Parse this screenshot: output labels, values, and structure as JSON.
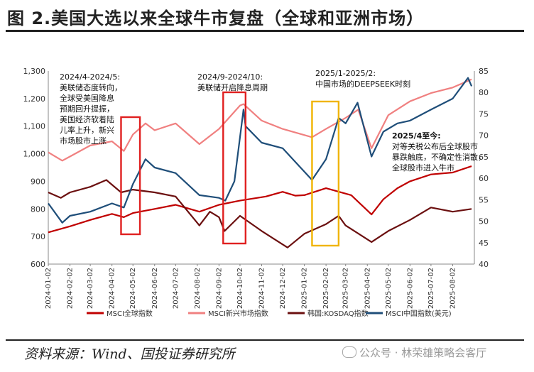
{
  "figure": {
    "title": "图 2.美国大选以来全球牛市复盘（全球和亚洲市场）",
    "source": "资料来源：Wind、国投证券研究所",
    "watermark": "公众号 · 林荣雄策略会客厅"
  },
  "chart_data": {
    "type": "line",
    "title": "",
    "xlabel": "",
    "ylabel": "",
    "x_ticks": [
      "2024-01-02",
      "2024-02-02",
      "2024-03-02",
      "2024-04-02",
      "2024-05-02",
      "2024-06-02",
      "2024-07-02",
      "2024-08-02",
      "2024-09-02",
      "2024-10-02",
      "2024-11-02",
      "2024-12-02",
      "2025-01-02",
      "2025-02-02",
      "2025-03-02",
      "2025-04-02",
      "2025-05-02",
      "2025-06-02",
      "2025-07-02",
      "2025-08-02"
    ],
    "y_left": {
      "ticks": [
        "600",
        "700",
        "800",
        "900",
        "1,000",
        "1,100",
        "1,200",
        "1,300"
      ],
      "ylim": [
        600,
        1300
      ]
    },
    "y_right": {
      "ticks": [
        "40",
        "45",
        "50",
        "55",
        "60",
        "65",
        "70",
        "75",
        "80",
        "85"
      ],
      "ylim": [
        40,
        85
      ]
    },
    "grid": false,
    "legend_position": "bottom",
    "series": [
      {
        "name": "MSCI全球指数",
        "axis": "left",
        "color": "#c00000",
        "points": [
          [
            "2024-01-02",
            715
          ],
          [
            "2024-02-02",
            737
          ],
          [
            "2024-03-02",
            760
          ],
          [
            "2024-04-02",
            782
          ],
          [
            "2024-04-19",
            770
          ],
          [
            "2024-05-02",
            785
          ],
          [
            "2024-06-02",
            800
          ],
          [
            "2024-07-02",
            815
          ],
          [
            "2024-08-05",
            790
          ],
          [
            "2024-09-02",
            815
          ],
          [
            "2024-10-02",
            830
          ],
          [
            "2024-11-08",
            845
          ],
          [
            "2024-12-02",
            862
          ],
          [
            "2024-12-20",
            848
          ],
          [
            "2025-01-02",
            850
          ],
          [
            "2025-02-02",
            875
          ],
          [
            "2025-03-10",
            850
          ],
          [
            "2025-04-08",
            780
          ],
          [
            "2025-04-25",
            835
          ],
          [
            "2025-05-15",
            875
          ],
          [
            "2025-06-02",
            900
          ],
          [
            "2025-07-02",
            925
          ],
          [
            "2025-08-02",
            932
          ],
          [
            "2025-08-29",
            955
          ]
        ]
      },
      {
        "name": "MSCI新兴市场指数",
        "axis": "left",
        "color": "#f08080",
        "points": [
          [
            "2024-01-02",
            1005
          ],
          [
            "2024-01-22",
            975
          ],
          [
            "2024-02-02",
            990
          ],
          [
            "2024-03-02",
            1030
          ],
          [
            "2024-04-02",
            1045
          ],
          [
            "2024-04-19",
            1010
          ],
          [
            "2024-05-02",
            1070
          ],
          [
            "2024-05-20",
            1110
          ],
          [
            "2024-06-02",
            1085
          ],
          [
            "2024-07-02",
            1110
          ],
          [
            "2024-08-05",
            1035
          ],
          [
            "2024-09-02",
            1090
          ],
          [
            "2024-10-02",
            1175
          ],
          [
            "2024-10-07",
            1180
          ],
          [
            "2024-11-02",
            1120
          ],
          [
            "2024-12-02",
            1090
          ],
          [
            "2025-01-13",
            1060
          ],
          [
            "2025-02-02",
            1090
          ],
          [
            "2025-03-02",
            1130
          ],
          [
            "2025-03-20",
            1160
          ],
          [
            "2025-04-08",
            1020
          ],
          [
            "2025-05-02",
            1140
          ],
          [
            "2025-06-02",
            1190
          ],
          [
            "2025-07-02",
            1220
          ],
          [
            "2025-08-02",
            1240
          ],
          [
            "2025-08-29",
            1270
          ]
        ]
      },
      {
        "name": "韩国:KOSDAQ指数",
        "axis": "right",
        "color": "#6b0f0f",
        "points": [
          [
            "2024-01-02",
            860
          ],
          [
            "2024-01-20",
            840
          ],
          [
            "2024-02-02",
            860
          ],
          [
            "2024-03-02",
            880
          ],
          [
            "2024-03-25",
            905
          ],
          [
            "2024-04-15",
            860
          ],
          [
            "2024-05-02",
            870
          ],
          [
            "2024-06-02",
            860
          ],
          [
            "2024-07-02",
            845
          ],
          [
            "2024-08-05",
            740
          ],
          [
            "2024-08-20",
            790
          ],
          [
            "2024-09-02",
            770
          ],
          [
            "2024-09-10",
            720
          ],
          [
            "2024-10-02",
            775
          ],
          [
            "2024-11-02",
            720
          ],
          [
            "2024-12-09",
            660
          ],
          [
            "2025-01-02",
            710
          ],
          [
            "2025-02-02",
            745
          ],
          [
            "2025-02-20",
            775
          ],
          [
            "2025-03-02",
            740
          ],
          [
            "2025-04-08",
            680
          ],
          [
            "2025-05-02",
            720
          ],
          [
            "2025-06-02",
            760
          ],
          [
            "2025-07-02",
            805
          ],
          [
            "2025-08-02",
            790
          ],
          [
            "2025-08-29",
            800
          ]
        ]
      },
      {
        "name": "MSCI中国指数(美元)",
        "axis": "right",
        "color": "#1f4e79",
        "points": [
          [
            "2024-01-02",
            820
          ],
          [
            "2024-01-22",
            750
          ],
          [
            "2024-02-02",
            775
          ],
          [
            "2024-03-02",
            790
          ],
          [
            "2024-04-02",
            820
          ],
          [
            "2024-04-19",
            805
          ],
          [
            "2024-05-02",
            890
          ],
          [
            "2024-05-20",
            980
          ],
          [
            "2024-06-02",
            950
          ],
          [
            "2024-07-02",
            930
          ],
          [
            "2024-08-05",
            850
          ],
          [
            "2024-09-02",
            840
          ],
          [
            "2024-09-11",
            830
          ],
          [
            "2024-09-24",
            900
          ],
          [
            "2024-10-07",
            1160
          ],
          [
            "2024-10-10",
            1100
          ],
          [
            "2024-11-02",
            1040
          ],
          [
            "2024-12-02",
            1020
          ],
          [
            "2025-01-13",
            905
          ],
          [
            "2025-02-02",
            980
          ],
          [
            "2025-02-20",
            1130
          ],
          [
            "2025-03-02",
            1110
          ],
          [
            "2025-03-19",
            1185
          ],
          [
            "2025-04-08",
            990
          ],
          [
            "2025-04-25",
            1080
          ],
          [
            "2025-05-15",
            1110
          ],
          [
            "2025-06-02",
            1120
          ],
          [
            "2025-07-02",
            1160
          ],
          [
            "2025-08-02",
            1200
          ],
          [
            "2025-08-24",
            1275
          ],
          [
            "2025-08-29",
            1245
          ]
        ]
      }
    ],
    "annotations": [
      {
        "label": "2024/4-2024/5:",
        "text": [
          "美联储态度转向，",
          "全球受美国降息",
          "预期回升提振，",
          "美国经济软着陆",
          "儿率上升，新兴",
          "市场股市上涨"
        ],
        "range": [
          "2024-04-15",
          "2024-05-12"
        ]
      },
      {
        "label": "2024/9-2024/10:",
        "text": [
          "美联储开启降息周期"
        ],
        "range": [
          "2024-09-08",
          "2024-10-10"
        ]
      },
      {
        "label": "2025/1-2025/2:",
        "text": [
          "中国市场的DEEPSEEK时刻"
        ],
        "range": [
          "2025-01-13",
          "2025-02-20"
        ]
      },
      {
        "label": "2025/4至今:",
        "text": [
          "对等关税公布后全球股市",
          "暴跌触底，不确定性消散，",
          "全球股市进入牛市"
        ]
      }
    ]
  }
}
